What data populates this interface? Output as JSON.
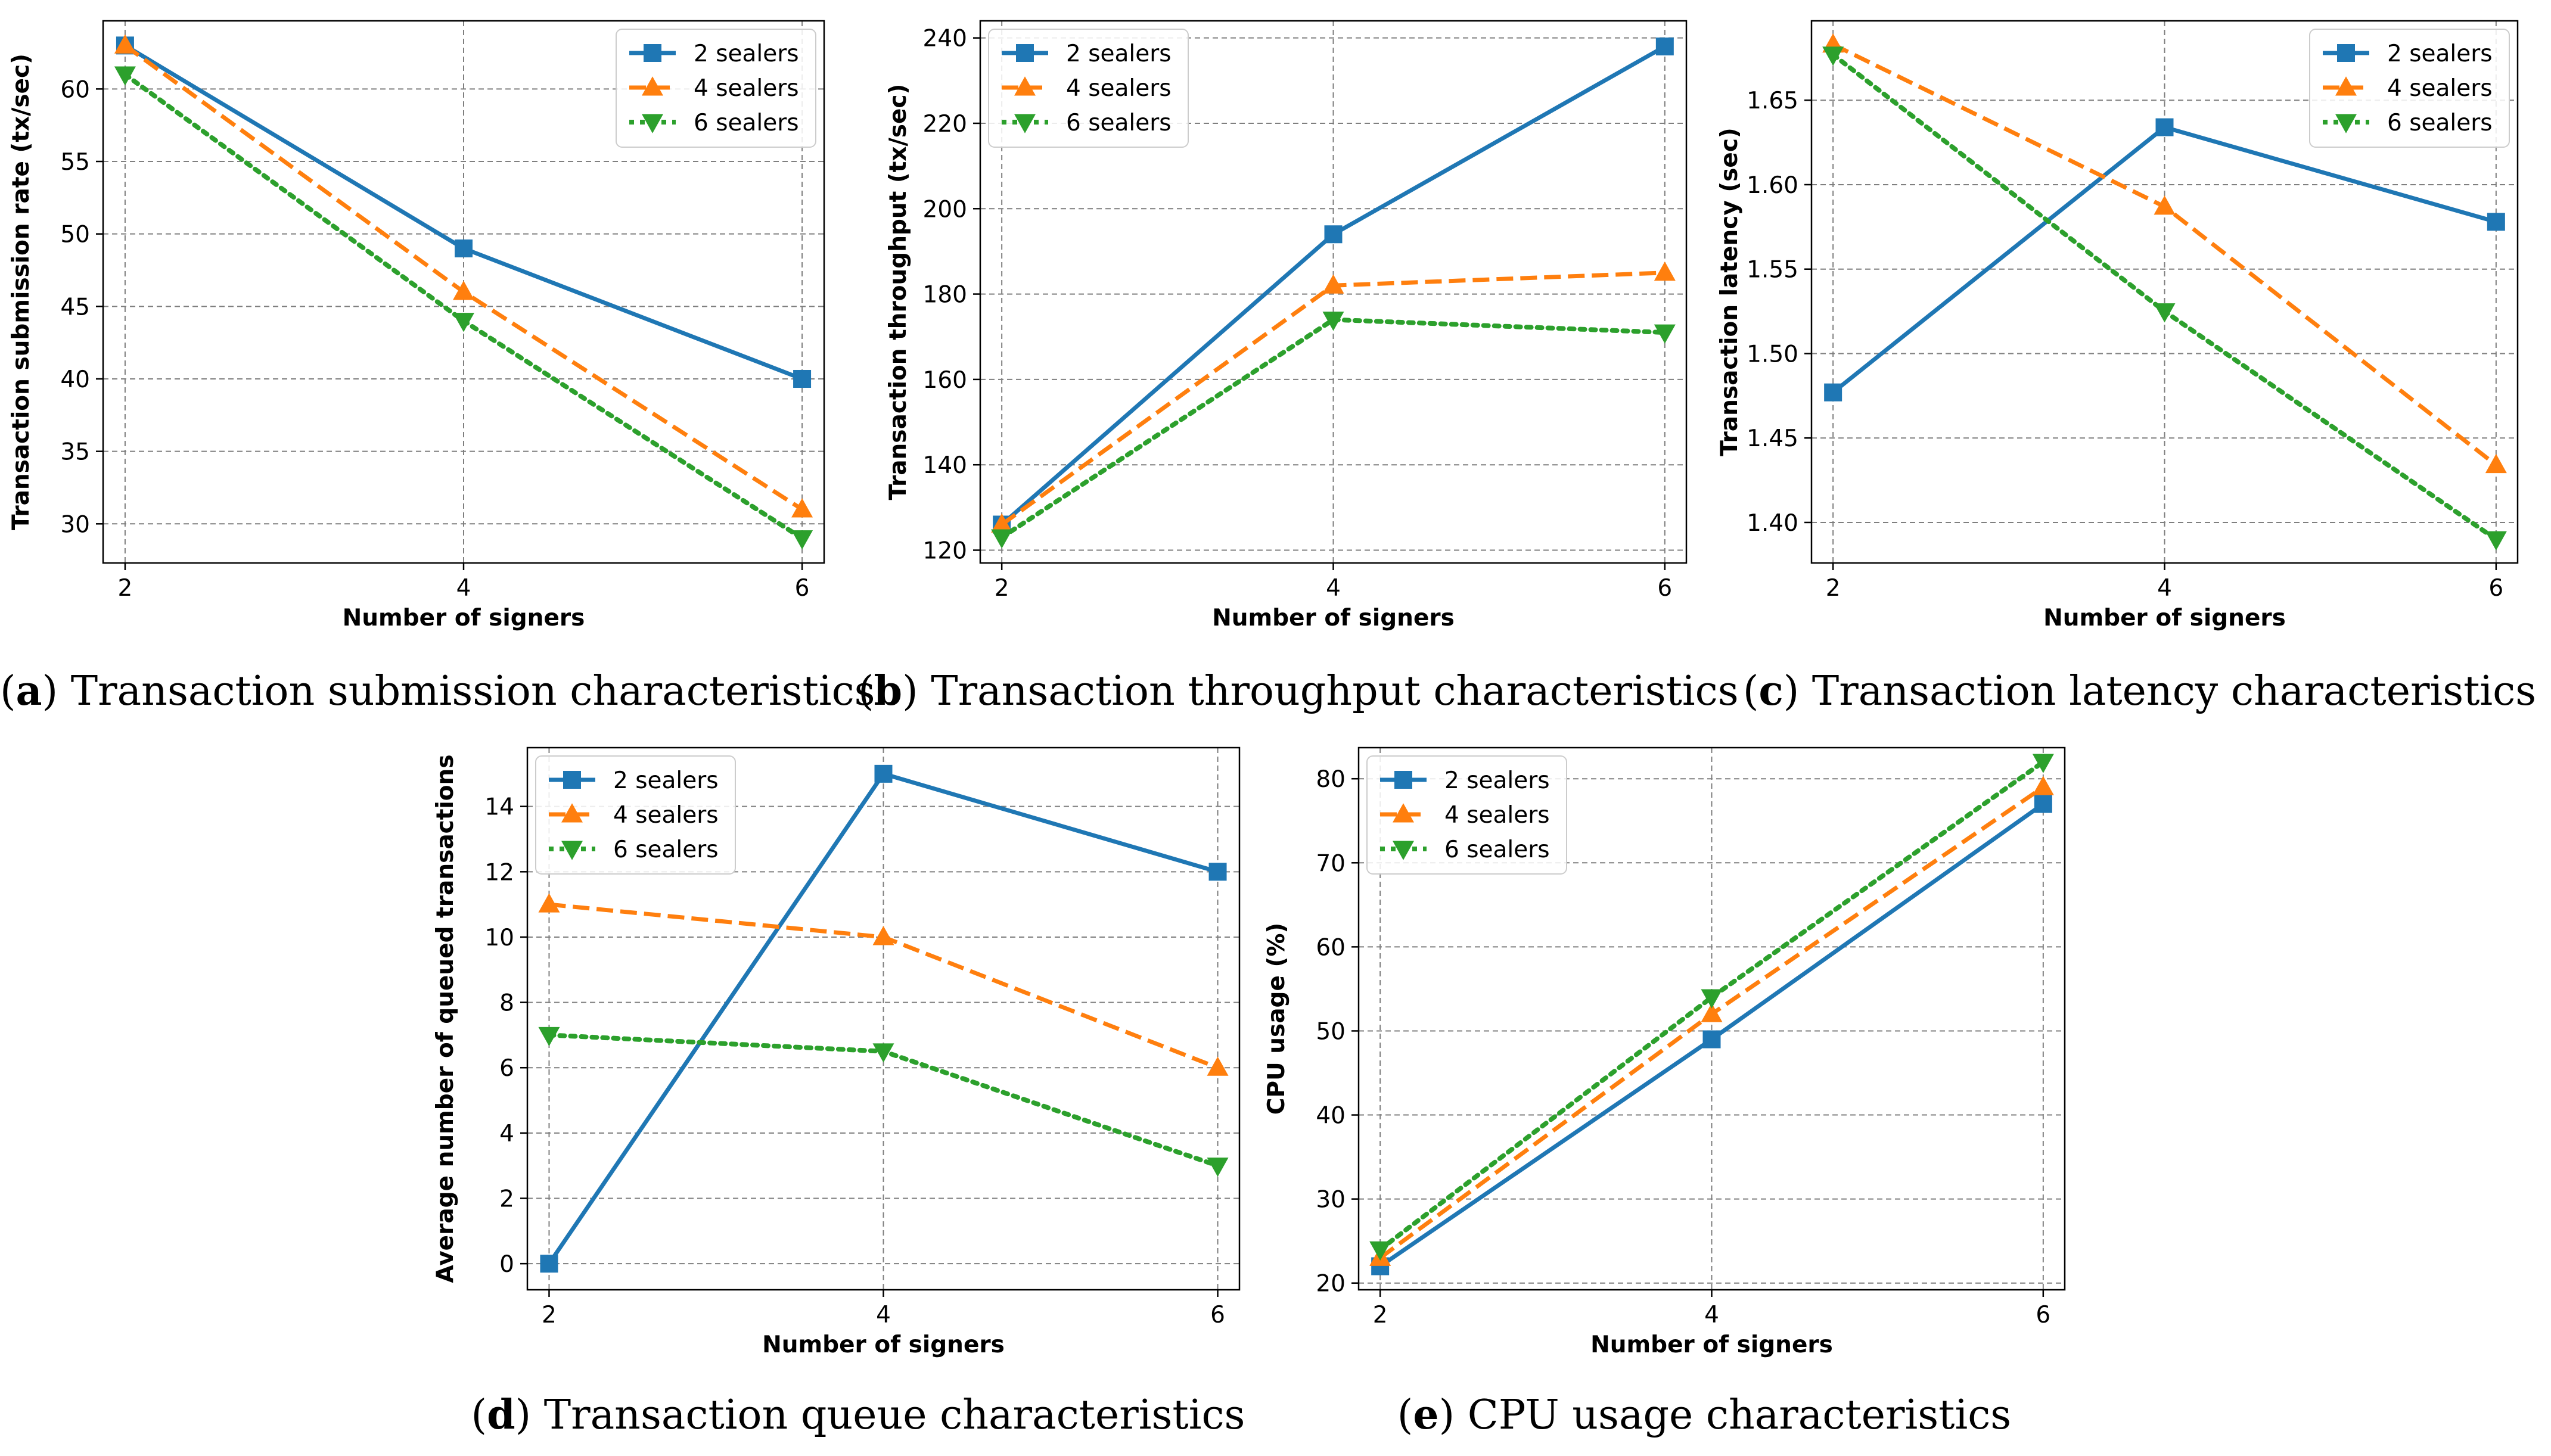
{
  "colors": {
    "series_1": "#1f77b4",
    "series_2": "#ff7f0e",
    "series_3": "#2ca02c",
    "grid": "#7f7f7f"
  },
  "chart_data": [
    {
      "type": "line",
      "caption_letter": "a",
      "caption_text": "Transaction submission characteristics",
      "xlabel": "Number of signers",
      "ylabel": "Transaction submission rate (tx/sec)",
      "x": [
        2,
        4,
        6
      ],
      "xticks": [
        "2",
        "4",
        "6"
      ],
      "yticks": [
        30,
        35,
        40,
        45,
        50,
        55,
        60
      ],
      "xlim": [
        1.87,
        6.13
      ],
      "ylim": [
        27.3,
        64.7
      ],
      "grid": true,
      "legend_position": "top-right",
      "series": [
        {
          "name": "2 sealers",
          "values": [
            63,
            49,
            40
          ],
          "marker": "square",
          "dash": "solid"
        },
        {
          "name": "4 sealers",
          "values": [
            63,
            46,
            31
          ],
          "marker": "triangle-up",
          "dash": "dashed"
        },
        {
          "name": "6 sealers",
          "values": [
            61,
            44,
            29
          ],
          "marker": "triangle-down",
          "dash": "dotted"
        }
      ]
    },
    {
      "type": "line",
      "caption_letter": "b",
      "caption_text": "Transaction throughput characteristics",
      "xlabel": "Number of signers",
      "ylabel": "Transaction throughput (tx/sec)",
      "x": [
        2,
        4,
        6
      ],
      "xticks": [
        "2",
        "4",
        "6"
      ],
      "yticks": [
        120,
        140,
        160,
        180,
        200,
        220,
        240
      ],
      "xlim": [
        1.87,
        6.13
      ],
      "ylim": [
        117,
        244
      ],
      "grid": true,
      "legend_position": "top-left",
      "series": [
        {
          "name": "2 sealers",
          "values": [
            126,
            194,
            238
          ],
          "marker": "square",
          "dash": "solid"
        },
        {
          "name": "4 sealers",
          "values": [
            126,
            182,
            185
          ],
          "marker": "triangle-up",
          "dash": "dashed"
        },
        {
          "name": "6 sealers",
          "values": [
            123,
            174,
            171
          ],
          "marker": "triangle-down",
          "dash": "dotted"
        }
      ]
    },
    {
      "type": "line",
      "caption_letter": "c",
      "caption_text": "Transaction latency characteristics",
      "xlabel": "Number of signers",
      "ylabel": "Transaction latency (sec)",
      "x": [
        2,
        4,
        6
      ],
      "xticks": [
        "2",
        "4",
        "6"
      ],
      "yticks": [
        "1.40",
        "1.45",
        "1.50",
        "1.55",
        "1.60",
        "1.65"
      ],
      "ytick_values": [
        1.4,
        1.45,
        1.5,
        1.55,
        1.6,
        1.65
      ],
      "xlim": [
        1.87,
        6.13
      ],
      "ylim": [
        1.376,
        1.697
      ],
      "grid": true,
      "legend_position": "top-right",
      "series": [
        {
          "name": "2 sealers",
          "values": [
            1.477,
            1.634,
            1.578
          ],
          "marker": "square",
          "dash": "solid"
        },
        {
          "name": "4 sealers",
          "values": [
            1.683,
            1.587,
            1.434
          ],
          "marker": "triangle-up",
          "dash": "dashed"
        },
        {
          "name": "6 sealers",
          "values": [
            1.677,
            1.525,
            1.39
          ],
          "marker": "triangle-down",
          "dash": "dotted"
        }
      ]
    },
    {
      "type": "line",
      "caption_letter": "d",
      "caption_text": "Transaction queue characteristics",
      "xlabel": "Number of signers",
      "ylabel": "Average number of queued transactions",
      "x": [
        2,
        4,
        6
      ],
      "xticks": [
        "2",
        "4",
        "6"
      ],
      "yticks": [
        0,
        2,
        4,
        6,
        8,
        10,
        12,
        14
      ],
      "xlim": [
        1.87,
        6.13
      ],
      "ylim": [
        -0.8,
        15.8
      ],
      "grid": true,
      "legend_position": "top-left",
      "series": [
        {
          "name": "2 sealers",
          "values": [
            0,
            15,
            12
          ],
          "marker": "square",
          "dash": "solid"
        },
        {
          "name": "4 sealers",
          "values": [
            11,
            10,
            6
          ],
          "marker": "triangle-up",
          "dash": "dashed"
        },
        {
          "name": "6 sealers",
          "values": [
            7,
            6.5,
            3
          ],
          "marker": "triangle-down",
          "dash": "dotted"
        }
      ]
    },
    {
      "type": "line",
      "caption_letter": "e",
      "caption_text": "CPU usage characteristics",
      "xlabel": "Number of signers",
      "ylabel": "CPU usage (%)",
      "x": [
        2,
        4,
        6
      ],
      "xticks": [
        "2",
        "4",
        "6"
      ],
      "yticks": [
        20,
        30,
        40,
        50,
        60,
        70,
        80
      ],
      "xlim": [
        1.87,
        6.13
      ],
      "ylim": [
        19.2,
        83.7
      ],
      "grid": true,
      "legend_position": "top-left",
      "series": [
        {
          "name": "2 sealers",
          "values": [
            22,
            49,
            77
          ],
          "marker": "square",
          "dash": "solid"
        },
        {
          "name": "4 sealers",
          "values": [
            23,
            52,
            79
          ],
          "marker": "triangle-up",
          "dash": "dashed"
        },
        {
          "name": "6 sealers",
          "values": [
            24,
            54,
            82
          ],
          "marker": "triangle-down",
          "dash": "dotted"
        }
      ]
    }
  ]
}
